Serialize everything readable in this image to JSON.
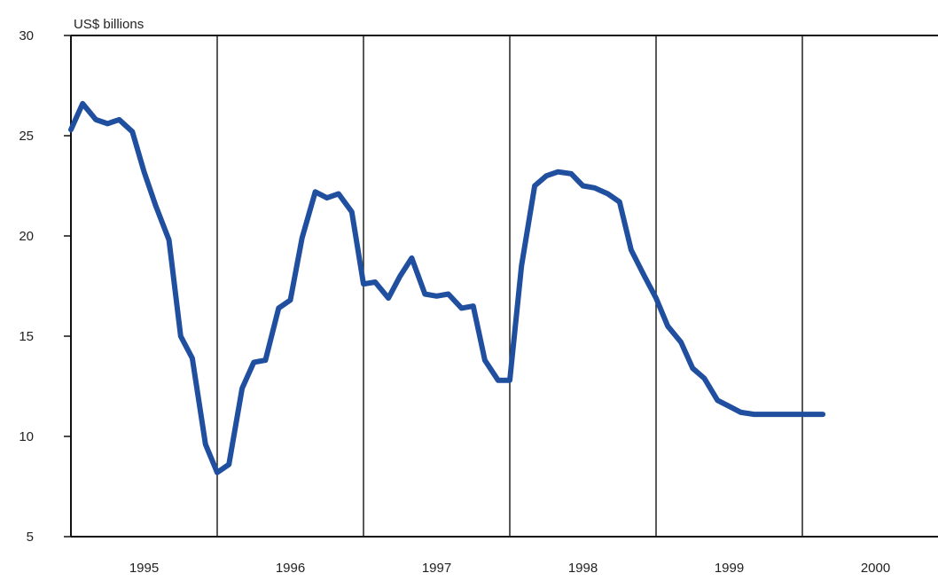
{
  "chart_data": {
    "type": "line",
    "title": "",
    "ylabel": "US$ billions",
    "xlabel": "",
    "ylim": [
      5,
      30
    ],
    "yticks": [
      5,
      10,
      15,
      20,
      25,
      30
    ],
    "xlim": [
      1995.0,
      2001.0
    ],
    "year_labels": [
      "1995",
      "1996",
      "1997",
      "1998",
      "1999",
      "2000"
    ],
    "year_dividers": [
      1996,
      1997,
      1998,
      1999,
      2000
    ],
    "grid": false,
    "legend": "none",
    "series": [
      {
        "color": "#1f4f9e",
        "x": [
          1995.0,
          1995.08,
          1995.17,
          1995.25,
          1995.33,
          1995.42,
          1995.5,
          1995.58,
          1995.67,
          1995.75,
          1995.83,
          1995.92,
          1996.0,
          1996.08,
          1996.17,
          1996.25,
          1996.33,
          1996.42,
          1996.5,
          1996.58,
          1996.67,
          1996.75,
          1996.83,
          1996.92,
          1997.0,
          1997.08,
          1997.17,
          1997.25,
          1997.33,
          1997.42,
          1997.5,
          1997.58,
          1997.67,
          1997.75,
          1997.83,
          1997.92,
          1998.0,
          1998.08,
          1998.17,
          1998.25,
          1998.33,
          1998.42,
          1998.5,
          1998.58,
          1998.67,
          1998.75,
          1998.83,
          1998.92,
          1999.0,
          1999.08,
          1999.17,
          1999.25,
          1999.33,
          1999.42,
          1999.5,
          1999.58,
          1999.67,
          1999.75,
          1999.83,
          1999.92,
          2000.0,
          2000.08,
          2000.14
        ],
        "values": [
          25.3,
          26.6,
          25.8,
          25.6,
          25.8,
          25.2,
          23.2,
          21.5,
          19.8,
          15.0,
          13.9,
          9.6,
          8.2,
          8.6,
          12.4,
          13.7,
          13.8,
          16.4,
          16.8,
          19.9,
          22.2,
          21.9,
          22.1,
          21.2,
          17.6,
          17.7,
          16.9,
          18.0,
          18.9,
          17.1,
          17.0,
          17.1,
          16.4,
          16.5,
          13.8,
          12.8,
          12.8,
          18.5,
          22.5,
          23.0,
          23.2,
          23.1,
          22.5,
          22.4,
          22.1,
          21.7,
          19.3,
          18.0,
          16.9,
          15.5,
          14.7,
          13.4,
          12.9,
          11.8,
          11.5,
          11.2,
          11.1,
          11.1,
          11.1,
          11.1,
          11.1,
          11.1,
          11.1
        ]
      }
    ]
  }
}
